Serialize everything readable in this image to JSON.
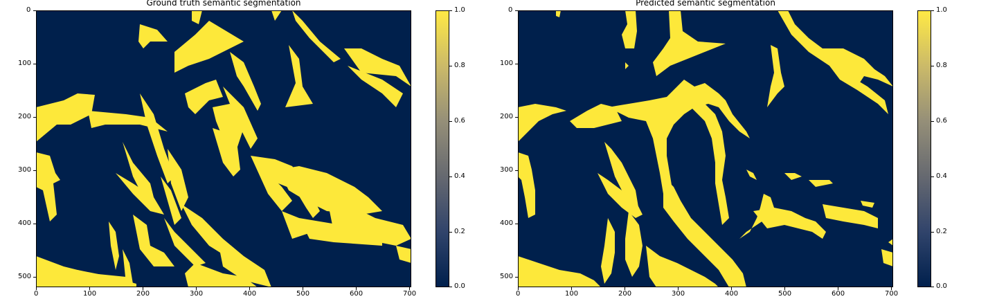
{
  "chart_data": [
    {
      "type": "heatmap",
      "title": "Ground truth semantic segmentation",
      "x_ticks": [
        "0",
        "100",
        "200",
        "300",
        "400",
        "500",
        "600",
        "700"
      ],
      "y_ticks": [
        "0",
        "100",
        "200",
        "300",
        "400",
        "500"
      ],
      "xlim": [
        0,
        704
      ],
      "ylim": [
        520,
        0
      ],
      "colormap": "cividis",
      "colors": {
        "low": "#00204c",
        "high": "#fde83a"
      },
      "colorbar": {
        "range": [
          0.0,
          1.0
        ],
        "ticks": [
          "0.0",
          "0.2",
          "0.4",
          "0.6",
          "0.8",
          "1.0"
        ]
      }
    },
    {
      "type": "heatmap",
      "title": "Predicted semantic segmentation",
      "x_ticks": [
        "0",
        "100",
        "200",
        "300",
        "400",
        "500",
        "600",
        "700"
      ],
      "y_ticks": [
        "0",
        "100",
        "200",
        "300",
        "400",
        "500"
      ],
      "xlim": [
        0,
        704
      ],
      "ylim": [
        520,
        0
      ],
      "colormap": "cividis",
      "colors": {
        "low": "#00204c",
        "high": "#fde83a"
      },
      "colorbar": {
        "range": [
          0.0,
          1.0
        ],
        "ticks": [
          "0.0",
          "0.2",
          "0.4",
          "0.6",
          "0.8",
          "1.0"
        ]
      }
    }
  ]
}
